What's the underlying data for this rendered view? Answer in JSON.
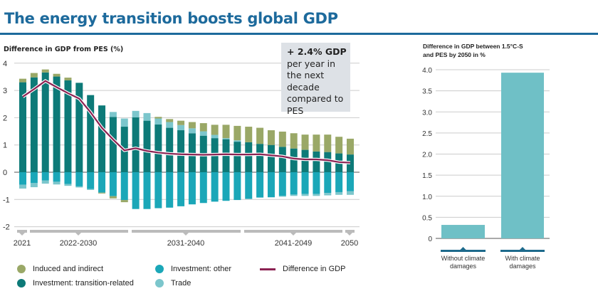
{
  "title": "The energy transition boosts global GDP",
  "callout": {
    "headline": "+ 2.4% GDP",
    "text": "per year in the next decade compared to PES"
  },
  "colors": {
    "induced": "#9aa867",
    "transition": "#0d7a78",
    "investment_other": "#1ba7b8",
    "trade": "#7cc6cc",
    "gdp_line": "#8b2252",
    "right_bar": "#6fc0c6",
    "title": "#1d6a9c"
  },
  "chart_data": [
    {
      "type": "bar",
      "stacked": true,
      "title": "Difference in GDP from PES (%)",
      "ylim": [
        -2,
        4
      ],
      "yticks": [
        "4",
        "3",
        "2",
        "1",
        "0",
        "-1",
        "-2"
      ],
      "grid": true,
      "x": [
        2021,
        2022,
        2023,
        2024,
        2025,
        2026,
        2027,
        2028,
        2029,
        2030,
        2031,
        2032,
        2033,
        2034,
        2035,
        2036,
        2037,
        2038,
        2039,
        2040,
        2041,
        2042,
        2043,
        2044,
        2045,
        2046,
        2047,
        2048,
        2049,
        2050
      ],
      "period_labels": [
        "2021",
        "2022-2030",
        "2031-2040",
        "2041-2049",
        "2050"
      ],
      "series": [
        {
          "name": "Investment: transition-related",
          "key": "transition",
          "values": [
            3.3,
            3.48,
            3.66,
            3.51,
            3.37,
            3.28,
            2.83,
            2.45,
            2.03,
            1.67,
            2.01,
            1.89,
            1.75,
            1.63,
            1.54,
            1.43,
            1.34,
            1.25,
            1.21,
            1.12,
            1.1,
            1.04,
            1.0,
            0.93,
            0.87,
            0.82,
            0.76,
            0.74,
            0.69,
            0.65
          ]
        },
        {
          "name": "Investment: other",
          "key": "investment_other",
          "values": [
            -0.46,
            -0.4,
            -0.3,
            -0.35,
            -0.43,
            -0.52,
            -0.62,
            -0.75,
            -0.88,
            -1.02,
            -1.35,
            -1.35,
            -1.32,
            -1.3,
            -1.25,
            -1.18,
            -1.13,
            -1.08,
            -1.05,
            -1.02,
            -0.98,
            -0.93,
            -0.92,
            -0.87,
            -0.82,
            -0.8,
            -0.8,
            -0.76,
            -0.73,
            -0.7
          ]
        },
        {
          "name": "Trade",
          "key": "trade",
          "values": [
            -0.14,
            -0.15,
            -0.12,
            -0.1,
            -0.07,
            -0.04,
            -0.03,
            0,
            0.18,
            0.3,
            0.24,
            0.28,
            0.22,
            0.21,
            0.19,
            0.18,
            0.16,
            0.12,
            0.04,
            0.05,
            0,
            0,
            0,
            -0.03,
            -0.05,
            -0.07,
            -0.07,
            -0.09,
            -0.1,
            -0.13
          ]
        },
        {
          "name": "Induced and indirect",
          "key": "induced",
          "values": [
            0.13,
            0.16,
            0.11,
            0.1,
            0.1,
            0,
            0,
            -0.03,
            -0.08,
            -0.08,
            0,
            0,
            0.06,
            0.11,
            0.16,
            0.23,
            0.3,
            0.37,
            0.49,
            0.53,
            0.57,
            0.59,
            0.54,
            0.56,
            0.56,
            0.56,
            0.62,
            0.64,
            0.61,
            0.58
          ]
        },
        {
          "name": "Difference in GDP",
          "key": "gdp_line",
          "type": "line",
          "values": [
            2.77,
            3.05,
            3.35,
            3.12,
            2.9,
            2.7,
            2.2,
            1.63,
            1.2,
            0.8,
            0.88,
            0.78,
            0.72,
            0.68,
            0.66,
            0.65,
            0.64,
            0.65,
            0.66,
            0.65,
            0.65,
            0.66,
            0.62,
            0.58,
            0.5,
            0.47,
            0.47,
            0.44,
            0.37,
            0.35
          ]
        }
      ],
      "legend": [
        {
          "label": "Induced and indirect",
          "key": "induced"
        },
        {
          "label": "Investment: transition-related",
          "key": "transition"
        },
        {
          "label": "Investment: other",
          "key": "investment_other"
        },
        {
          "label": "Trade",
          "key": "trade"
        },
        {
          "label": "Difference in GDP",
          "key": "gdp_line"
        }
      ],
      "legend_position": "bottom"
    },
    {
      "type": "bar",
      "title": "Difference in GDP between 1.5°C-S and PES by 2050 in %",
      "ylim": [
        0,
        4
      ],
      "yticks": [
        "4.0",
        "3.5",
        "3.0",
        "2.5",
        "2.0",
        "1.5",
        "1.0",
        "0.5",
        "0"
      ],
      "grid": true,
      "categories": [
        "Without climate damages",
        "With climate damages"
      ],
      "values": [
        0.32,
        3.93
      ]
    }
  ]
}
